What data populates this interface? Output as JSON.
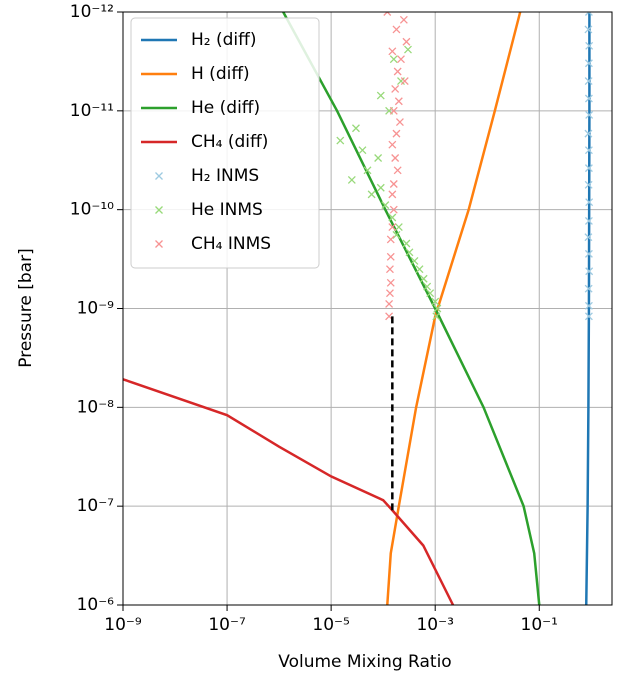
{
  "chart_data": {
    "type": "scatter",
    "x_label": "Volume Mixing Ratio",
    "y_label": "Pressure [bar]",
    "xscale": "log",
    "yscale": "log",
    "y_inverted": true,
    "grid": true,
    "legend": "upper left",
    "xlim": [
      1e-09,
      2.5
    ],
    "ylim": [
      1e-12,
      1e-06
    ],
    "xticks": [
      {
        "value": 1e-09,
        "label": "10⁻⁹"
      },
      {
        "value": 1e-07,
        "label": "10⁻⁷"
      },
      {
        "value": 1e-05,
        "label": "10⁻⁵"
      },
      {
        "value": 0.001,
        "label": "10⁻³"
      },
      {
        "value": 0.1,
        "label": "10⁻¹"
      }
    ],
    "yticks": [
      {
        "value": 1e-12,
        "label": "10⁻¹²"
      },
      {
        "value": 1e-11,
        "label": "10⁻¹¹"
      },
      {
        "value": 1e-10,
        "label": "10⁻¹⁰"
      },
      {
        "value": 1e-09,
        "label": "10⁻⁹"
      },
      {
        "value": 1e-08,
        "label": "10⁻⁸"
      },
      {
        "value": 1e-07,
        "label": "10⁻⁷"
      },
      {
        "value": 1e-06,
        "label": "10⁻⁶"
      }
    ],
    "series": [
      {
        "name": "H₂ (diff)",
        "color": "#1f77b4",
        "style": "line",
        "x": [
          0.92,
          0.92,
          0.91,
          0.9,
          0.88,
          0.85,
          0.8
        ],
        "y": [
          1e-12,
          1e-11,
          1e-10,
          1e-09,
          1e-08,
          1e-07,
          1e-06
        ]
      },
      {
        "name": "H (diff)",
        "color": "#ff7f0e",
        "style": "line",
        "x": [
          0.043,
          0.014,
          0.0044,
          0.001,
          0.00043,
          0.0002,
          0.00014,
          0.00012
        ],
        "y": [
          1e-12,
          1e-11,
          1e-10,
          1.2e-09,
          1e-08,
          1e-07,
          3e-07,
          1e-06
        ]
      },
      {
        "name": "He (diff)",
        "color": "#2ca02c",
        "style": "line",
        "x": [
          1.2e-06,
          1.3e-05,
          0.00011,
          0.001,
          0.0085,
          0.05,
          0.08,
          0.1
        ],
        "y": [
          1e-12,
          1e-11,
          1e-10,
          1e-09,
          1e-08,
          1e-07,
          3e-07,
          1e-06
        ]
      },
      {
        "name": "CH₄ (diff)",
        "color": "#d62728",
        "style": "line",
        "x": [
          1e-09,
          1e-07,
          1e-06,
          1e-05,
          0.0001,
          0.00015,
          0.00059,
          0.0022
        ],
        "y": [
          5.2e-09,
          1.2e-08,
          2.5e-08,
          5e-08,
          8.7e-08,
          1.1e-07,
          2.5e-07,
          1e-06
        ]
      },
      {
        "name": "H₂ INMS",
        "color": "#9ecae1",
        "style": "marker",
        "x": [
          0.9,
          0.88,
          0.91,
          0.9,
          0.89,
          0.9,
          0.91,
          0.88,
          0.9,
          0.9,
          0.89,
          0.91,
          0.9,
          0.88,
          0.9,
          0.91,
          0.89,
          0.9,
          0.9
        ],
        "y": [
          1e-12,
          1.5e-12,
          2.2e-12,
          3.3e-12,
          5e-12,
          7.5e-12,
          1.1e-11,
          1.7e-11,
          2.5e-11,
          3.8e-11,
          5.6e-11,
          8.4e-11,
          1.3e-10,
          1.9e-10,
          2.8e-10,
          4.2e-10,
          6.3e-10,
          9.4e-10,
          1.2e-09
        ]
      },
      {
        "name": "He INMS",
        "color": "#98d97a",
        "style": "marker",
        "x": [
          0.0003,
          0.00016,
          0.00022,
          9e-05,
          0.00013,
          3e-05,
          1.5e-05,
          4e-05,
          8e-05,
          5e-05,
          2.5e-05,
          9e-05,
          6e-05,
          0.00011,
          0.00015,
          0.0002,
          0.00018,
          0.00028,
          0.00032,
          0.0004,
          0.0005,
          0.0006,
          0.0007,
          0.0008,
          0.001,
          0.0011,
          0.00105
        ],
        "y": [
          2.4e-12,
          3e-12,
          5e-12,
          7e-12,
          1e-11,
          1.5e-11,
          2e-11,
          2.5e-11,
          3e-11,
          4e-11,
          5e-11,
          6e-11,
          7e-11,
          9e-11,
          1.2e-10,
          1.5e-10,
          1.8e-10,
          2.2e-10,
          2.7e-10,
          3.3e-10,
          4e-10,
          5e-10,
          6e-10,
          7e-10,
          8.5e-10,
          1e-09,
          1.2e-09
        ]
      },
      {
        "name": "CH₄ INMS",
        "color": "#f79393",
        "style": "marker",
        "x": [
          0.00012,
          0.00025,
          0.00018,
          0.00028,
          0.00015,
          0.00022,
          0.00019,
          0.00026,
          0.00017,
          0.0002,
          0.00016,
          0.00021,
          0.00018,
          0.00015,
          0.00017,
          0.00019,
          0.00016,
          0.00015,
          0.00016,
          0.00015,
          0.00014,
          0.00014,
          0.000135,
          0.00014,
          0.000135,
          0.00013,
          0.00013
        ],
        "y": [
          1e-12,
          1.2e-12,
          1.5e-12,
          2e-12,
          2.5e-12,
          3e-12,
          4e-12,
          5e-12,
          6e-12,
          8e-12,
          1e-11,
          1.3e-11,
          1.7e-11,
          2.2e-11,
          3e-11,
          4e-11,
          5.5e-11,
          7e-11,
          1e-10,
          1.5e-10,
          2e-10,
          3e-10,
          4e-10,
          5.5e-10,
          7e-10,
          9e-10,
          1.2e-09
        ]
      },
      {
        "color": "#000000",
        "style": "dashed",
        "x": [
          0.00015,
          0.00015
        ],
        "y": [
          1.2e-09,
          1.1e-07
        ]
      }
    ]
  }
}
